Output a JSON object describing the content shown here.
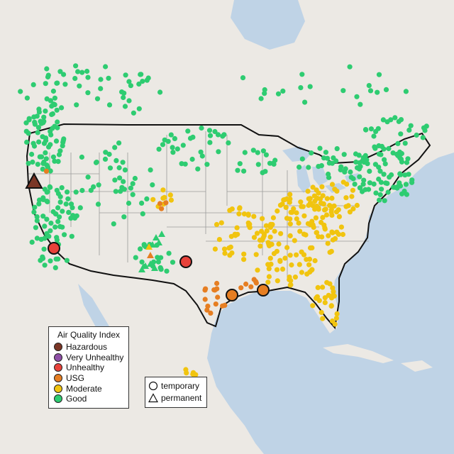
{
  "legend": {
    "title": "Air Quality Index",
    "categories": [
      {
        "label": "Hazardous",
        "color": "#7b3626"
      },
      {
        "label": "Very Unhealthy",
        "color": "#8e4fa6"
      },
      {
        "label": "Unhealthy",
        "color": "#e8423a"
      },
      {
        "label": "USG",
        "color": "#e67e22"
      },
      {
        "label": "Moderate",
        "color": "#f1c40f"
      },
      {
        "label": "Good",
        "color": "#2ecc71"
      }
    ]
  },
  "site_legend": {
    "temporary_label": "temporary",
    "permanent_label": "permanent"
  },
  "colors": {
    "land": "#ece9e4",
    "water": "#bfd3e6",
    "state_border": "#9a9a9a",
    "national_border": "#111111"
  },
  "highlighted_sites": [
    {
      "category": "Hazardous",
      "type": "permanent",
      "region": "Northern California"
    },
    {
      "category": "Unhealthy",
      "type": "temporary",
      "region": "Southern California"
    },
    {
      "category": "Unhealthy",
      "type": "temporary",
      "region": "West Texas"
    },
    {
      "category": "USG",
      "type": "temporary",
      "region": "Houston"
    },
    {
      "category": "USG",
      "type": "temporary",
      "region": "Louisiana"
    }
  ]
}
